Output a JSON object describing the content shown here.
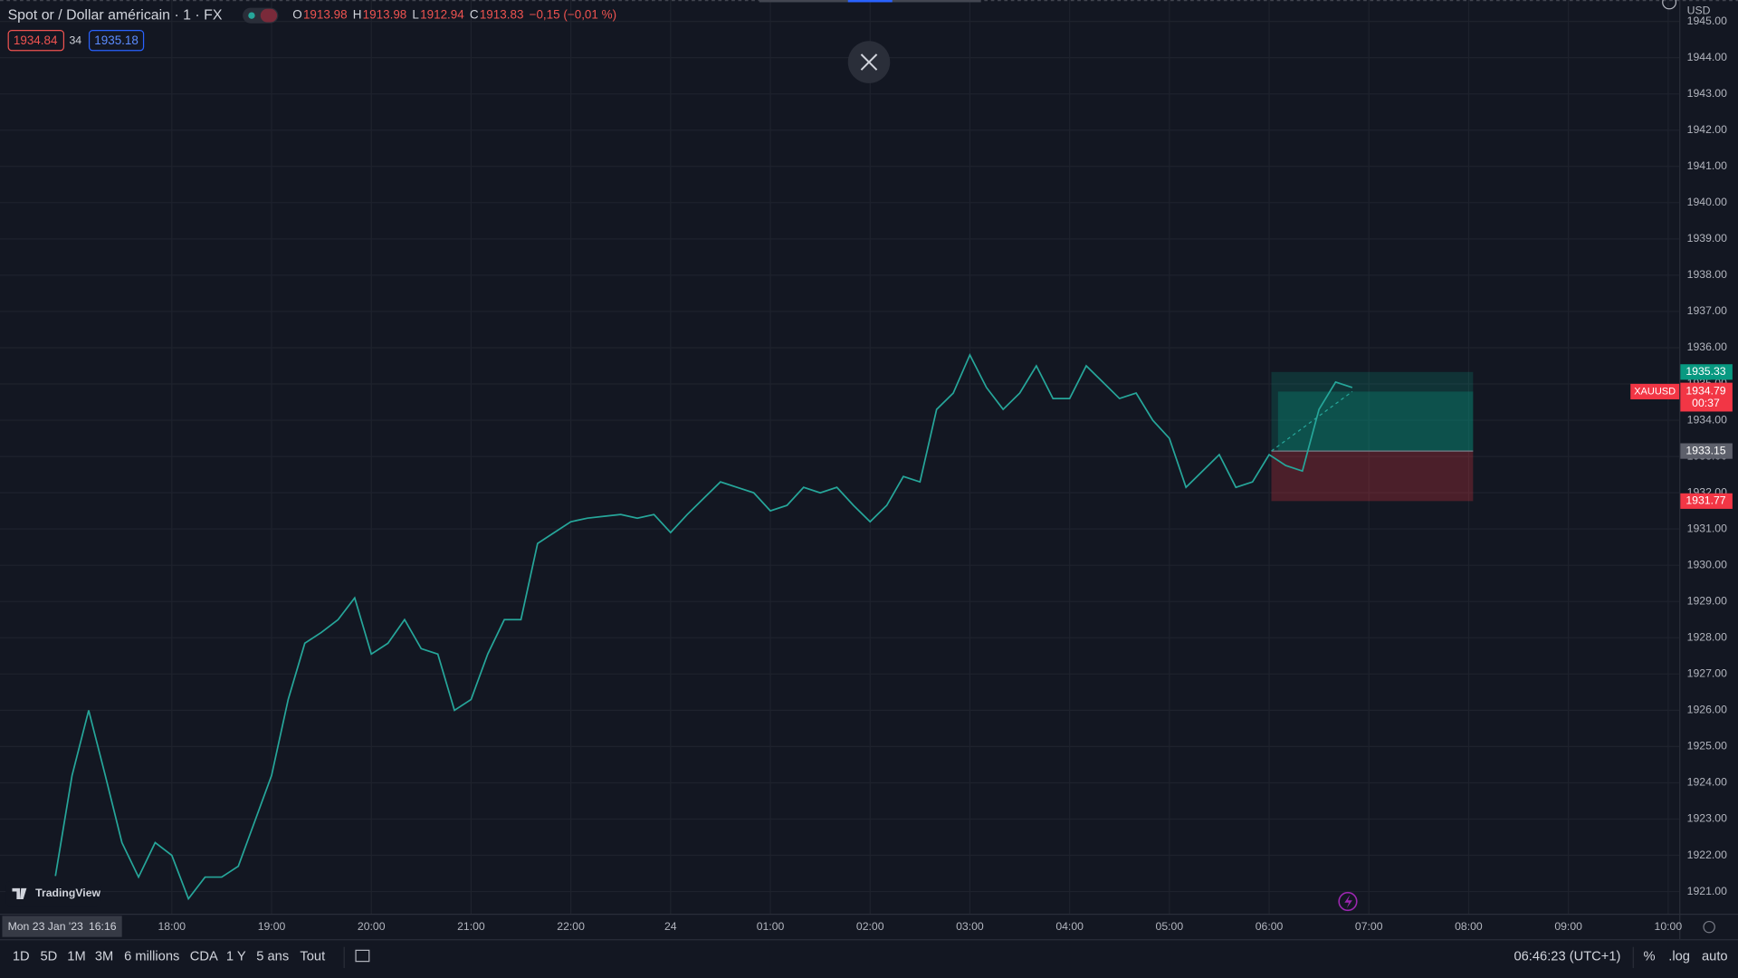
{
  "header": {
    "symbol": "Spot or / Dollar américain · 1 · FX",
    "ohlc": [
      {
        "key": "O",
        "value": "1913.98"
      },
      {
        "key": "H",
        "value": "1913.98"
      },
      {
        "key": "L",
        "value": "1912.94"
      },
      {
        "key": "C",
        "value": "1913.83"
      }
    ],
    "change": "−0,15 (−0,01 %)",
    "bid": "1934.84",
    "spread": "34",
    "ask": "1935.18",
    "currency": "USD"
  },
  "chart_data": {
    "type": "line",
    "series": [
      {
        "name": "XAUUSD",
        "color": "#26a69a",
        "values": [
          1921.43,
          1924.2,
          1926.0,
          1924.2,
          1922.35,
          1921.4,
          1922.35,
          1922.0,
          1920.8,
          1921.4,
          1921.4,
          1921.7,
          1922.95,
          1924.2,
          1926.3,
          1927.85,
          1928.15,
          1928.5,
          1929.1,
          1927.55,
          1927.85,
          1928.5,
          1927.7,
          1927.55,
          1926.0,
          1926.3,
          1927.55,
          1928.5,
          1928.5,
          1930.6,
          1930.9,
          1931.2,
          1931.3,
          1931.35,
          1931.4,
          1931.3,
          1931.4,
          1930.9,
          1931.4,
          1931.85,
          1932.3,
          1932.15,
          1932.0,
          1931.5,
          1931.65,
          1932.15,
          1932.0,
          1932.15,
          1931.65,
          1931.2,
          1931.65,
          1932.45,
          1932.3,
          1934.3,
          1934.75,
          1935.8,
          1934.9,
          1934.3,
          1934.75,
          1935.5,
          1934.6,
          1934.6,
          1935.5,
          1935.05,
          1934.6,
          1934.75,
          1934.0,
          1933.5,
          1932.15,
          1932.6,
          1933.05,
          1932.15,
          1932.3,
          1933.05,
          1932.75,
          1932.6,
          1934.3,
          1935.05,
          1934.9
        ]
      }
    ],
    "ylim": [
      1920.39,
      1945.59
    ],
    "yticks": [
      {
        "value": 1921,
        "label": "1921.00"
      },
      {
        "value": 1922,
        "label": "1922.00"
      },
      {
        "value": 1923,
        "label": "1923.00"
      },
      {
        "value": 1924,
        "label": "1924.00"
      },
      {
        "value": 1925,
        "label": "1925.00"
      },
      {
        "value": 1926,
        "label": "1926.00"
      },
      {
        "value": 1927,
        "label": "1927.00"
      },
      {
        "value": 1928,
        "label": "1928.00"
      },
      {
        "value": 1929,
        "label": "1929.00"
      },
      {
        "value": 1930,
        "label": "1930.00"
      },
      {
        "value": 1931,
        "label": "1931.00"
      },
      {
        "value": 1932,
        "label": "1932.00"
      },
      {
        "value": 1933,
        "label": "1933.00"
      },
      {
        "value": 1934,
        "label": "1934.00"
      },
      {
        "value": 1935,
        "label": "1935.00"
      },
      {
        "value": 1936,
        "label": "1936.00"
      },
      {
        "value": 1937,
        "label": "1937.00"
      },
      {
        "value": 1938,
        "label": "1938.00"
      },
      {
        "value": 1939,
        "label": "1939.00"
      },
      {
        "value": 1940,
        "label": "1940.00"
      },
      {
        "value": 1941,
        "label": "1941.00"
      },
      {
        "value": 1942,
        "label": "1942.00"
      },
      {
        "value": 1943,
        "label": "1943.00"
      },
      {
        "value": 1944,
        "label": "1944.00"
      },
      {
        "value": 1945,
        "label": "1945.00"
      }
    ],
    "xticks": [
      "18:00",
      "19:00",
      "20:00",
      "21:00",
      "22:00",
      "24",
      "01:00",
      "02:00",
      "03:00",
      "04:00",
      "05:00",
      "06:00",
      "07:00",
      "08:00",
      "09:00",
      "10:00"
    ],
    "grid": true,
    "last_price": 1934.79,
    "countdown": "00:37",
    "position": {
      "target": 1935.33,
      "entry": 1933.15,
      "stop": 1931.77
    },
    "crosshair_date": "Mon 23 Jan '23",
    "crosshair_time": "16:16"
  },
  "watermark": "TradingView",
  "footer": {
    "ranges": [
      "1D",
      "5D",
      "1M",
      "3M",
      "6 millions",
      "CDA",
      "1 Y",
      "5 ans",
      "Tout"
    ],
    "clock": "06:46:23 (UTC+1)",
    "options": [
      "%",
      ".log",
      "auto"
    ]
  }
}
